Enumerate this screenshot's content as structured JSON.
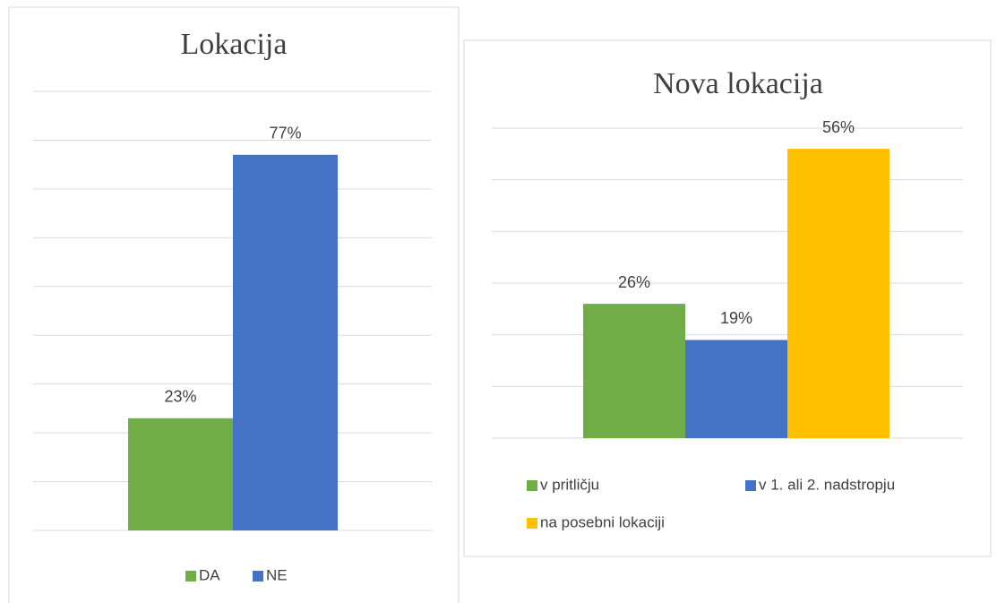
{
  "chart_data": [
    {
      "type": "bar",
      "title": "Lokacija",
      "series": [
        {
          "name": "DA",
          "color": "#70ad47",
          "values": [
            23
          ],
          "value_labels": [
            "23%"
          ]
        },
        {
          "name": "NE",
          "color": "#4472c4",
          "values": [
            77
          ],
          "value_labels": [
            "77%"
          ]
        }
      ],
      "ylim": [
        0,
        90
      ],
      "yticks": [
        0,
        10,
        20,
        30,
        40,
        50,
        60,
        70,
        80,
        90
      ],
      "grid": true,
      "legend": "bottom"
    },
    {
      "type": "bar",
      "title": "Nova lokacija",
      "series": [
        {
          "name": "v pritličju",
          "color": "#70ad47",
          "values": [
            26
          ],
          "value_labels": [
            "26%"
          ]
        },
        {
          "name": "v 1. ali 2. nadstropju",
          "color": "#4472c4",
          "values": [
            19
          ],
          "value_labels": [
            "19%"
          ]
        },
        {
          "name": "na posebni lokaciji",
          "color": "#ffc000",
          "values": [
            56
          ],
          "value_labels": [
            "56%"
          ]
        }
      ],
      "ylim": [
        0,
        60
      ],
      "yticks": [
        0,
        10,
        20,
        30,
        40,
        50,
        60
      ],
      "grid": true,
      "legend": "bottom"
    }
  ]
}
